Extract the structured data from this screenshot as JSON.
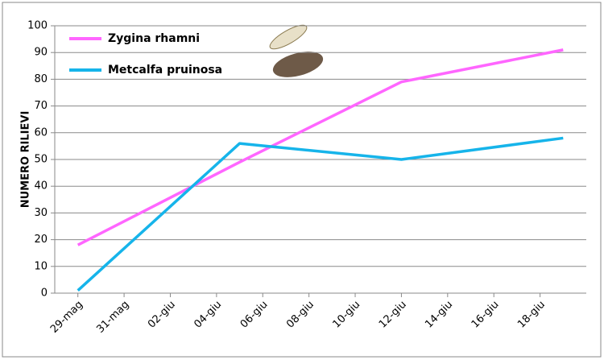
{
  "chart_data": {
    "type": "line",
    "y_label": "NUMERO RILIEVI",
    "x": [
      "29-mag",
      "05-giu",
      "12-giu",
      "19-giu"
    ],
    "series": [
      {
        "name": "Zygina rhamni",
        "color": "#ff66ff",
        "values": [
          18,
          49,
          79,
          91
        ]
      },
      {
        "name": "Metcalfa pruinosa",
        "color": "#16b4ea",
        "values": [
          1,
          56,
          50,
          58
        ]
      }
    ],
    "xlim": [
      "28-mag",
      "20-giu"
    ],
    "xticks": [
      "29-mag",
      "31-mag",
      "02-giu",
      "04-giu",
      "06-giu",
      "08-giu",
      "10-giu",
      "12-giu",
      "14-giu",
      "16-giu",
      "18-giu"
    ],
    "ylim": [
      0,
      100
    ],
    "yticks": [
      0,
      10,
      20,
      30,
      40,
      50,
      60,
      70,
      80,
      90,
      100
    ],
    "grid": true,
    "legend": "top-left"
  }
}
